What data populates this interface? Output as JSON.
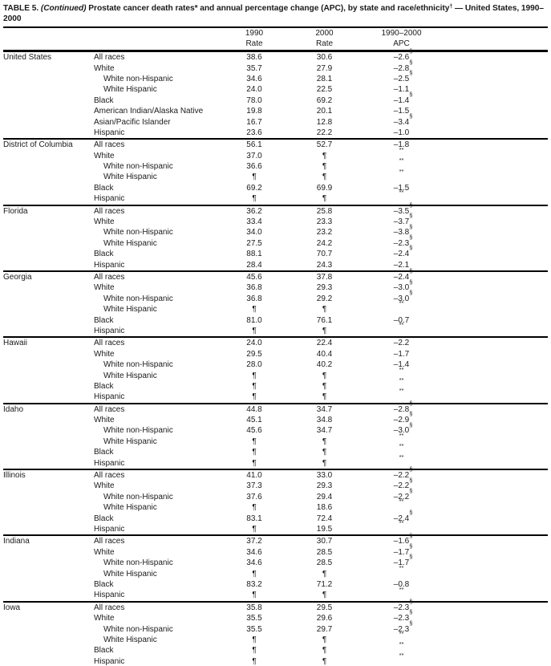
{
  "title": {
    "table_label": "TABLE 5. ",
    "continued": "(Continued) ",
    "text_main": "Prostate cancer death rates* and annual percentage change (APC), by state and race/ethnicity",
    "dagger": "†",
    "text_tail": " — United States, 1990–2000"
  },
  "columns": [
    {
      "line1": "1990",
      "line2": "Rate"
    },
    {
      "line1": "2000",
      "line2": "Rate"
    },
    {
      "line1": "1990–2000",
      "line2": "APC"
    }
  ],
  "sections": [
    {
      "state": "United States",
      "rows": [
        {
          "race": "All races",
          "ind": 0,
          "r90": "38.6",
          "r00": "30.6",
          "apc": "–2.6",
          "sup": "§"
        },
        {
          "race": "White",
          "ind": 0,
          "r90": "35.7",
          "r00": "27.9",
          "apc": "–2.8",
          "sup": "§"
        },
        {
          "race": "White non-Hispanic",
          "ind": 1,
          "r90": "34.6",
          "r00": "28.1",
          "apc": "–2.5",
          "sup": "§"
        },
        {
          "race": "White Hispanic",
          "ind": 1,
          "r90": "24.0",
          "r00": "22.5",
          "apc": "–1.1",
          "sup": ""
        },
        {
          "race": "Black",
          "ind": 0,
          "r90": "78.0",
          "r00": "69.2",
          "apc": "–1.4",
          "sup": "§"
        },
        {
          "race": "American Indian/Alaska Native",
          "ind": 0,
          "r90": "19.8",
          "r00": "20.1",
          "apc": "–1.5",
          "sup": ""
        },
        {
          "race": "Asian/Pacific Islander",
          "ind": 0,
          "r90": "16.7",
          "r00": "12.8",
          "apc": "–3.4",
          "sup": "§"
        },
        {
          "race": "Hispanic",
          "ind": 0,
          "r90": "23.6",
          "r00": "22.2",
          "apc": "–1.0",
          "sup": ""
        }
      ]
    },
    {
      "state": "District of Columbia",
      "rows": [
        {
          "race": "All races",
          "ind": 0,
          "r90": "56.1",
          "r00": "52.7",
          "apc": "–1.8",
          "sup": ""
        },
        {
          "race": "White",
          "ind": 0,
          "r90": "37.0",
          "r00": "¶",
          "apc": "",
          "sup": "**"
        },
        {
          "race": "White non-Hispanic",
          "ind": 1,
          "r90": "36.6",
          "r00": "¶",
          "apc": "",
          "sup": "**"
        },
        {
          "race": "White Hispanic",
          "ind": 1,
          "r90": "¶",
          "r00": "¶",
          "apc": "",
          "sup": "**"
        },
        {
          "race": "Black",
          "ind": 0,
          "r90": "69.2",
          "r00": "69.9",
          "apc": "–1.5",
          "sup": ""
        },
        {
          "race": "Hispanic",
          "ind": 0,
          "r90": "¶",
          "r00": "¶",
          "apc": "",
          "sup": "**"
        }
      ]
    },
    {
      "state": "Florida",
      "rows": [
        {
          "race": "All races",
          "ind": 0,
          "r90": "36.2",
          "r00": "25.8",
          "apc": "–3.5",
          "sup": "§"
        },
        {
          "race": "White",
          "ind": 0,
          "r90": "33.4",
          "r00": "23.3",
          "apc": "–3.7",
          "sup": "§"
        },
        {
          "race": "White non-Hispanic",
          "ind": 1,
          "r90": "34.0",
          "r00": "23.2",
          "apc": "–3.8",
          "sup": "§"
        },
        {
          "race": "White Hispanic",
          "ind": 1,
          "r90": "27.5",
          "r00": "24.2",
          "apc": "–2.3",
          "sup": "§"
        },
        {
          "race": "Black",
          "ind": 0,
          "r90": "88.1",
          "r00": "70.7",
          "apc": "–2.4",
          "sup": "§"
        },
        {
          "race": "Hispanic",
          "ind": 0,
          "r90": "28.4",
          "r00": "24.3",
          "apc": "–2.1",
          "sup": ""
        }
      ]
    },
    {
      "state": "Georgia",
      "rows": [
        {
          "race": "All races",
          "ind": 0,
          "r90": "45.6",
          "r00": "37.8",
          "apc": "–2.4",
          "sup": "§"
        },
        {
          "race": "White",
          "ind": 0,
          "r90": "36.8",
          "r00": "29.3",
          "apc": "–3.0",
          "sup": "§"
        },
        {
          "race": "White non-Hispanic",
          "ind": 1,
          "r90": "36.8",
          "r00": "29.2",
          "apc": "–3.0",
          "sup": "§"
        },
        {
          "race": "White Hispanic",
          "ind": 1,
          "r90": "¶",
          "r00": "¶",
          "apc": "",
          "sup": "**"
        },
        {
          "race": "Black",
          "ind": 0,
          "r90": "81.0",
          "r00": "76.1",
          "apc": "–0.7",
          "sup": ""
        },
        {
          "race": "Hispanic",
          "ind": 0,
          "r90": "¶",
          "r00": "¶",
          "apc": "",
          "sup": "**"
        }
      ]
    },
    {
      "state": "Hawaii",
      "rows": [
        {
          "race": "All races",
          "ind": 0,
          "r90": "24.0",
          "r00": "22.4",
          "apc": "–2.2",
          "sup": ""
        },
        {
          "race": "White",
          "ind": 0,
          "r90": "29.5",
          "r00": "40.4",
          "apc": "–1.7",
          "sup": ""
        },
        {
          "race": "White non-Hispanic",
          "ind": 1,
          "r90": "28.0",
          "r00": "40.2",
          "apc": "–1.4",
          "sup": ""
        },
        {
          "race": "White Hispanic",
          "ind": 1,
          "r90": "¶",
          "r00": "¶",
          "apc": "",
          "sup": "**"
        },
        {
          "race": "Black",
          "ind": 0,
          "r90": "¶",
          "r00": "¶",
          "apc": "",
          "sup": "**"
        },
        {
          "race": "Hispanic",
          "ind": 0,
          "r90": "¶",
          "r00": "¶",
          "apc": "",
          "sup": "**"
        }
      ]
    },
    {
      "state": "Idaho",
      "rows": [
        {
          "race": "All races",
          "ind": 0,
          "r90": "44.8",
          "r00": "34.7",
          "apc": "–2.8",
          "sup": "§"
        },
        {
          "race": "White",
          "ind": 0,
          "r90": "45.1",
          "r00": "34.8",
          "apc": "–2.9",
          "sup": "§"
        },
        {
          "race": "White non-Hispanic",
          "ind": 1,
          "r90": "45.6",
          "r00": "34.7",
          "apc": "–3.0",
          "sup": "§"
        },
        {
          "race": "White Hispanic",
          "ind": 1,
          "r90": "¶",
          "r00": "¶",
          "apc": "",
          "sup": "**"
        },
        {
          "race": "Black",
          "ind": 0,
          "r90": "¶",
          "r00": "¶",
          "apc": "",
          "sup": "**"
        },
        {
          "race": "Hispanic",
          "ind": 0,
          "r90": "¶",
          "r00": "¶",
          "apc": "",
          "sup": "**"
        }
      ]
    },
    {
      "state": "Illinois",
      "rows": [
        {
          "race": "All races",
          "ind": 0,
          "r90": "41.0",
          "r00": "33.0",
          "apc": "–2.2",
          "sup": "§"
        },
        {
          "race": "White",
          "ind": 0,
          "r90": "37.3",
          "r00": "29.3",
          "apc": "–2.2",
          "sup": "§"
        },
        {
          "race": "White non-Hispanic",
          "ind": 1,
          "r90": "37.6",
          "r00": "29.4",
          "apc": "–2.2",
          "sup": "§"
        },
        {
          "race": "White Hispanic",
          "ind": 1,
          "r90": "¶",
          "r00": "18.6",
          "apc": "",
          "sup": "**"
        },
        {
          "race": "Black",
          "ind": 0,
          "r90": "83.1",
          "r00": "72.4",
          "apc": "–2.4",
          "sup": "§"
        },
        {
          "race": "Hispanic",
          "ind": 0,
          "r90": "¶",
          "r00": "19.5",
          "apc": "",
          "sup": "**"
        }
      ]
    },
    {
      "state": "Indiana",
      "rows": [
        {
          "race": "All races",
          "ind": 0,
          "r90": "37.2",
          "r00": "30.7",
          "apc": "–1.6",
          "sup": "§"
        },
        {
          "race": "White",
          "ind": 0,
          "r90": "34.6",
          "r00": "28.5",
          "apc": "–1.7",
          "sup": "§"
        },
        {
          "race": "White non-Hispanic",
          "ind": 1,
          "r90": "34.6",
          "r00": "28.5",
          "apc": "–1.7",
          "sup": "§"
        },
        {
          "race": "White Hispanic",
          "ind": 1,
          "r90": "¶",
          "r00": "¶",
          "apc": "",
          "sup": "**"
        },
        {
          "race": "Black",
          "ind": 0,
          "r90": "83.2",
          "r00": "71.2",
          "apc": "–0.8",
          "sup": ""
        },
        {
          "race": "Hispanic",
          "ind": 0,
          "r90": "¶",
          "r00": "¶",
          "apc": "",
          "sup": "**"
        }
      ]
    },
    {
      "state": "Iowa",
      "rows": [
        {
          "race": "All races",
          "ind": 0,
          "r90": "35.8",
          "r00": "29.5",
          "apc": "–2.3",
          "sup": "§"
        },
        {
          "race": "White",
          "ind": 0,
          "r90": "35.5",
          "r00": "29.6",
          "apc": "–2.3",
          "sup": "§"
        },
        {
          "race": "White non-Hispanic",
          "ind": 1,
          "r90": "35.5",
          "r00": "29.7",
          "apc": "–2.3",
          "sup": "§"
        },
        {
          "race": "White Hispanic",
          "ind": 1,
          "r90": "¶",
          "r00": "¶",
          "apc": "",
          "sup": "**"
        },
        {
          "race": "Black",
          "ind": 0,
          "r90": "¶",
          "r00": "¶",
          "apc": "",
          "sup": "**"
        },
        {
          "race": "Hispanic",
          "ind": 0,
          "r90": "¶",
          "r00": "¶",
          "apc": "",
          "sup": "**"
        }
      ]
    }
  ]
}
